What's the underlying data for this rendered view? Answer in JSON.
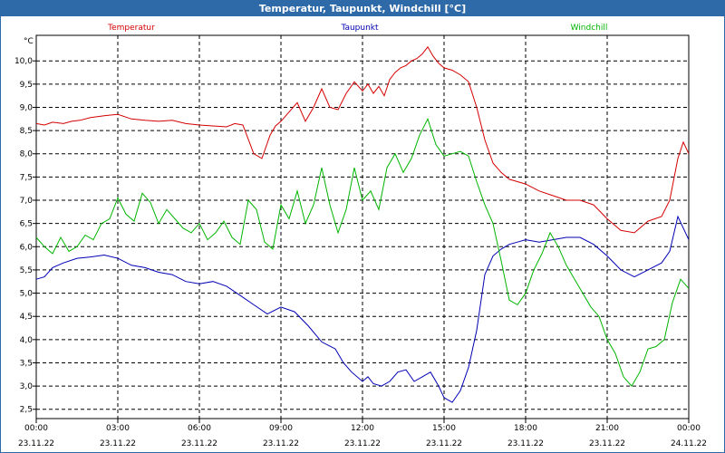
{
  "chart_data": {
    "type": "line",
    "title": "Temperatur, Taupunkt, Windchill [°C]",
    "ylabel": "°C",
    "ylim": [
      2.3,
      10.55
    ],
    "yticks": [
      2.5,
      3.0,
      3.5,
      4.0,
      4.5,
      5.0,
      5.5,
      6.0,
      6.5,
      7.0,
      7.5,
      8.0,
      8.5,
      9.0,
      9.5,
      10.0
    ],
    "ytick_labels": [
      "2,5",
      "3,0",
      "3,5",
      "4,0",
      "4,5",
      "5,0",
      "5,5",
      "6,0",
      "6,5",
      "7,0",
      "7,5",
      "8,0",
      "8,5",
      "9,0",
      "9,5",
      "10,0"
    ],
    "xlim_hours": [
      0,
      24
    ],
    "xticks_hours": [
      0,
      3,
      6,
      9,
      12,
      15,
      18,
      21,
      24
    ],
    "xtick_labels": [
      {
        "time": "00:00",
        "date": "23.11.22"
      },
      {
        "time": "03:00",
        "date": "23.11.22"
      },
      {
        "time": "06:00",
        "date": "23.11.22"
      },
      {
        "time": "09:00",
        "date": "23.11.22"
      },
      {
        "time": "12:00",
        "date": "23.11.22"
      },
      {
        "time": "15:00",
        "date": "23.11.22"
      },
      {
        "time": "18:00",
        "date": "23.11.22"
      },
      {
        "time": "21:00",
        "date": "23.11.22"
      },
      {
        "time": "00:00",
        "date": "24.11.22"
      }
    ],
    "grid": true,
    "legend_position": "top",
    "series": [
      {
        "name": "Temperatur",
        "color": "#d40000",
        "x": [
          0,
          0.3,
          0.6,
          1,
          1.3,
          1.6,
          2,
          2.5,
          3,
          3.5,
          4,
          4.5,
          5,
          5.5,
          6,
          6.5,
          7,
          7.3,
          7.6,
          8,
          8.3,
          8.6,
          8.8,
          9,
          9.3,
          9.6,
          9.9,
          10.2,
          10.5,
          10.8,
          11.1,
          11.4,
          11.7,
          12,
          12.2,
          12.4,
          12.6,
          12.8,
          13,
          13.2,
          13.4,
          13.6,
          13.8,
          14,
          14.2,
          14.4,
          14.6,
          14.8,
          15,
          15.3,
          15.6,
          15.9,
          16.2,
          16.5,
          16.8,
          17.1,
          17.4,
          17.7,
          18,
          18.5,
          19,
          19.5,
          20,
          20.5,
          21,
          21.5,
          22,
          22.5,
          23,
          23.3,
          23.6,
          23.8,
          24
        ],
        "values": [
          8.65,
          8.62,
          8.68,
          8.65,
          8.7,
          8.72,
          8.78,
          8.82,
          8.85,
          8.75,
          8.72,
          8.7,
          8.72,
          8.65,
          8.62,
          8.6,
          8.58,
          8.65,
          8.62,
          8.0,
          7.9,
          8.4,
          8.6,
          8.7,
          8.9,
          9.1,
          8.7,
          9.0,
          9.4,
          9.0,
          8.95,
          9.3,
          9.55,
          9.35,
          9.5,
          9.3,
          9.45,
          9.25,
          9.6,
          9.75,
          9.85,
          9.9,
          10.0,
          10.05,
          10.15,
          10.3,
          10.1,
          9.95,
          9.85,
          9.8,
          9.7,
          9.55,
          9.0,
          8.3,
          7.8,
          7.6,
          7.45,
          7.4,
          7.35,
          7.2,
          7.1,
          7.0,
          7.0,
          6.9,
          6.6,
          6.35,
          6.3,
          6.55,
          6.65,
          7.0,
          7.9,
          8.25,
          8.0
        ]
      },
      {
        "name": "Taupunkt",
        "color": "#0000b4",
        "x": [
          0,
          0.3,
          0.6,
          1,
          1.5,
          2,
          2.5,
          3,
          3.5,
          4,
          4.5,
          5,
          5.5,
          6,
          6.5,
          7,
          7.5,
          8,
          8.5,
          9,
          9.5,
          10,
          10.5,
          11,
          11.3,
          11.6,
          12,
          12.2,
          12.4,
          12.7,
          13,
          13.3,
          13.6,
          13.9,
          14.2,
          14.5,
          14.8,
          15,
          15.3,
          15.6,
          15.9,
          16.2,
          16.5,
          16.8,
          17.1,
          17.4,
          17.7,
          18,
          18.5,
          19,
          19.5,
          20,
          20.5,
          21,
          21.5,
          22,
          22.5,
          23,
          23.3,
          23.6,
          24
        ],
        "values": [
          5.3,
          5.35,
          5.55,
          5.65,
          5.75,
          5.78,
          5.82,
          5.75,
          5.6,
          5.55,
          5.45,
          5.4,
          5.25,
          5.2,
          5.25,
          5.15,
          4.95,
          4.75,
          4.55,
          4.7,
          4.6,
          4.3,
          3.95,
          3.8,
          3.5,
          3.3,
          3.1,
          3.2,
          3.05,
          3.0,
          3.1,
          3.3,
          3.35,
          3.1,
          3.2,
          3.3,
          3.0,
          2.75,
          2.65,
          2.9,
          3.4,
          4.2,
          5.4,
          5.8,
          5.95,
          6.05,
          6.1,
          6.15,
          6.1,
          6.15,
          6.2,
          6.2,
          6.05,
          5.8,
          5.5,
          5.35,
          5.5,
          5.65,
          5.9,
          6.65,
          6.15
        ]
      },
      {
        "name": "Windchill",
        "color": "#00b400",
        "x": [
          0,
          0.3,
          0.6,
          0.9,
          1.2,
          1.5,
          1.8,
          2.1,
          2.4,
          2.7,
          3,
          3.3,
          3.6,
          3.9,
          4.2,
          4.5,
          4.8,
          5.1,
          5.4,
          5.7,
          6,
          6.3,
          6.6,
          6.9,
          7.2,
          7.5,
          7.8,
          8.1,
          8.4,
          8.7,
          9,
          9.3,
          9.6,
          9.9,
          10.2,
          10.5,
          10.8,
          11.1,
          11.4,
          11.7,
          12,
          12.3,
          12.6,
          12.9,
          13.2,
          13.5,
          13.8,
          14.1,
          14.4,
          14.7,
          15,
          15.3,
          15.6,
          15.9,
          16.2,
          16.5,
          16.8,
          17.1,
          17.4,
          17.7,
          18,
          18.3,
          18.6,
          18.9,
          19.2,
          19.5,
          19.8,
          20.1,
          20.4,
          20.7,
          21,
          21.3,
          21.6,
          21.9,
          22.2,
          22.5,
          22.8,
          23.1,
          23.4,
          23.7,
          24
        ],
        "values": [
          6.2,
          6.0,
          5.85,
          6.2,
          5.9,
          6.0,
          6.25,
          6.15,
          6.5,
          6.6,
          7.05,
          6.7,
          6.55,
          7.15,
          6.95,
          6.5,
          6.8,
          6.6,
          6.4,
          6.3,
          6.5,
          6.15,
          6.3,
          6.55,
          6.2,
          6.05,
          7.0,
          6.8,
          6.1,
          5.95,
          6.9,
          6.6,
          7.2,
          6.5,
          6.9,
          7.7,
          6.9,
          6.3,
          6.8,
          7.7,
          7.0,
          7.2,
          6.8,
          7.7,
          8.0,
          7.6,
          7.9,
          8.4,
          8.75,
          8.2,
          7.95,
          8.0,
          8.05,
          7.95,
          7.4,
          6.9,
          6.5,
          5.7,
          4.85,
          4.75,
          5.0,
          5.5,
          5.85,
          6.3,
          6.0,
          5.6,
          5.3,
          5.0,
          4.7,
          4.5,
          4.0,
          3.7,
          3.2,
          3.0,
          3.3,
          3.8,
          3.85,
          4.0,
          4.8,
          5.3,
          5.1
        ]
      }
    ]
  }
}
